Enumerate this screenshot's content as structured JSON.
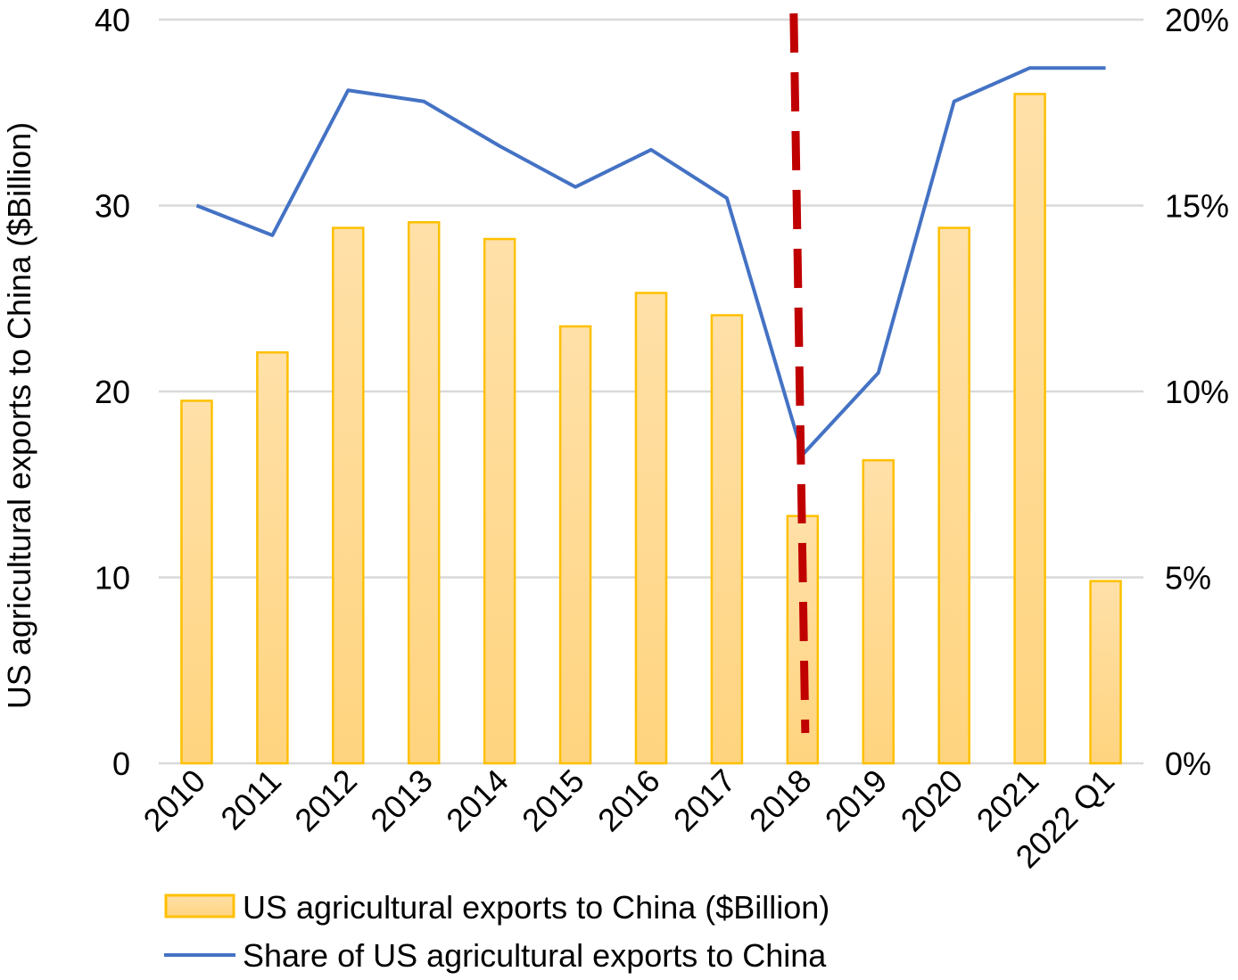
{
  "chart_data": {
    "type": "bar+line",
    "categories": [
      "2010",
      "2011",
      "2012",
      "2013",
      "2014",
      "2015",
      "2016",
      "2017",
      "2018",
      "2019",
      "2020",
      "2021",
      "2022 Q1"
    ],
    "series": [
      {
        "name": "US agricultural exports to China ($Billion)",
        "type": "bar",
        "axis": "left",
        "values": [
          19.5,
          22.1,
          28.8,
          29.1,
          28.2,
          23.5,
          25.3,
          24.1,
          13.3,
          16.3,
          28.8,
          36.0,
          9.8
        ]
      },
      {
        "name": "Share of US agricultural exports to China",
        "type": "line",
        "axis": "right",
        "values": [
          15.0,
          14.2,
          18.1,
          17.8,
          16.6,
          15.5,
          16.5,
          15.2,
          8.3,
          10.5,
          17.8,
          18.7,
          18.7
        ]
      }
    ],
    "ylabel": "US agricultural exports to China ($Billion)",
    "ylim": [
      0,
      40
    ],
    "yticks": [
      "0",
      "10",
      "20",
      "30",
      "40"
    ],
    "y2lim": [
      0,
      20
    ],
    "y2ticks": [
      "0%",
      "5%",
      "10%",
      "15%",
      "20%"
    ],
    "annotation": {
      "type": "dashed-vertical-line",
      "at": "2018"
    },
    "grid": true,
    "legend_position": "bottom",
    "colors": {
      "bar_fill": "#FFDB9A",
      "bar_stroke": "#FFC000",
      "line": "#4472C4",
      "annotation": "#C00000",
      "grid": "#D9D9D9"
    }
  }
}
